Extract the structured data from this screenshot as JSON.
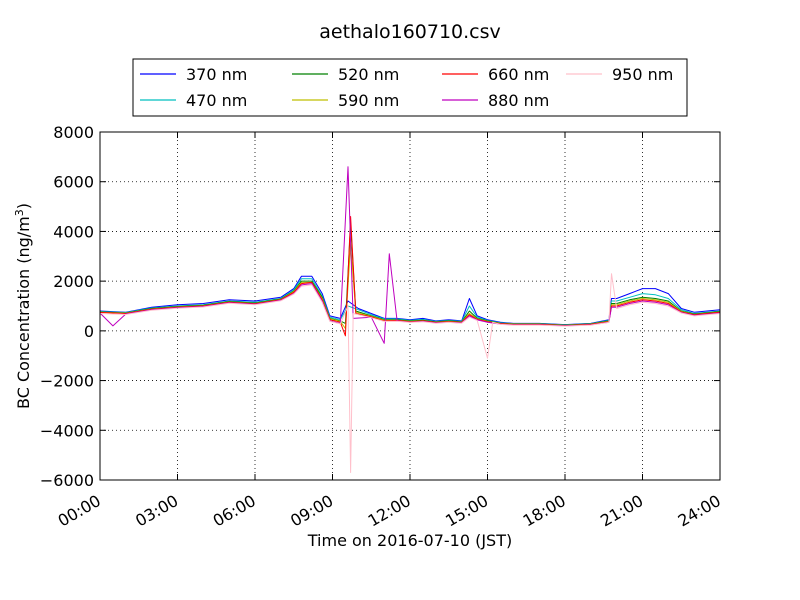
{
  "chart_data": {
    "type": "line",
    "title": "aethalo160710.csv",
    "xlabel": "Time on 2016-07-10 (JST)",
    "ylabel": "BC Concentration (ng/m",
    "ylabel_sup": "3",
    "ylabel_end": ")",
    "xlim": [
      0,
      24
    ],
    "ylim": [
      -6000,
      8000
    ],
    "x_ticks": [
      0,
      3,
      6,
      9,
      12,
      15,
      18,
      21,
      24
    ],
    "x_tick_labels": [
      "00:00",
      "03:00",
      "06:00",
      "09:00",
      "12:00",
      "15:00",
      "18:00",
      "21:00",
      "24:00"
    ],
    "y_ticks": [
      -6000,
      -4000,
      -2000,
      0,
      2000,
      4000,
      6000,
      8000
    ],
    "y_tick_labels": [
      "−6000",
      "−4000",
      "−2000",
      "0",
      "2000",
      "4000",
      "6000",
      "8000"
    ],
    "grid": true,
    "legend_position": "top-center",
    "series": [
      {
        "name": "370 nm",
        "color": "#0000ff",
        "points": [
          [
            0,
            800
          ],
          [
            1,
            750
          ],
          [
            2,
            950
          ],
          [
            3,
            1050
          ],
          [
            4,
            1100
          ],
          [
            5,
            1250
          ],
          [
            6,
            1200
          ],
          [
            7,
            1350
          ],
          [
            7.5,
            1700
          ],
          [
            7.8,
            2200
          ],
          [
            8.2,
            2200
          ],
          [
            8.6,
            1500
          ],
          [
            8.9,
            600
          ],
          [
            9.3,
            500
          ],
          [
            9.6,
            1200
          ],
          [
            10,
            900
          ],
          [
            10.5,
            700
          ],
          [
            11,
            500
          ],
          [
            11.5,
            500
          ],
          [
            12,
            450
          ],
          [
            12.5,
            500
          ],
          [
            13,
            400
          ],
          [
            13.5,
            450
          ],
          [
            14,
            400
          ],
          [
            14.3,
            1300
          ],
          [
            14.6,
            600
          ],
          [
            15,
            450
          ],
          [
            15.5,
            350
          ],
          [
            16,
            300
          ],
          [
            17,
            300
          ],
          [
            18,
            250
          ],
          [
            19,
            300
          ],
          [
            19.7,
            450
          ],
          [
            19.8,
            1300
          ],
          [
            20,
            1300
          ],
          [
            20.5,
            1500
          ],
          [
            21,
            1700
          ],
          [
            21.5,
            1700
          ],
          [
            22,
            1500
          ],
          [
            22.5,
            900
          ],
          [
            23,
            750
          ],
          [
            24,
            850
          ]
        ]
      },
      {
        "name": "470 nm",
        "color": "#00bfbf",
        "points": [
          [
            0,
            780
          ],
          [
            1,
            740
          ],
          [
            2,
            920
          ],
          [
            3,
            1000
          ],
          [
            4,
            1050
          ],
          [
            5,
            1200
          ],
          [
            6,
            1150
          ],
          [
            7,
            1300
          ],
          [
            7.5,
            1650
          ],
          [
            7.8,
            2100
          ],
          [
            8.2,
            2100
          ],
          [
            8.6,
            1400
          ],
          [
            8.9,
            550
          ],
          [
            9.3,
            450
          ],
          [
            9.6,
            1000
          ],
          [
            10,
            850
          ],
          [
            10.5,
            650
          ],
          [
            11,
            480
          ],
          [
            11.5,
            480
          ],
          [
            12,
            420
          ],
          [
            12.5,
            460
          ],
          [
            13,
            380
          ],
          [
            13.5,
            420
          ],
          [
            14,
            380
          ],
          [
            14.3,
            1000
          ],
          [
            14.6,
            550
          ],
          [
            15,
            420
          ],
          [
            15.5,
            330
          ],
          [
            16,
            290
          ],
          [
            17,
            290
          ],
          [
            18,
            240
          ],
          [
            19,
            290
          ],
          [
            19.7,
            420
          ],
          [
            19.8,
            1200
          ],
          [
            20,
            1200
          ],
          [
            20.5,
            1350
          ],
          [
            21,
            1500
          ],
          [
            21.5,
            1450
          ],
          [
            22,
            1300
          ],
          [
            22.5,
            850
          ],
          [
            23,
            700
          ],
          [
            24,
            800
          ]
        ]
      },
      {
        "name": "520 nm",
        "color": "#008000",
        "points": [
          [
            0,
            760
          ],
          [
            1,
            720
          ],
          [
            2,
            900
          ],
          [
            3,
            980
          ],
          [
            4,
            1030
          ],
          [
            5,
            1180
          ],
          [
            6,
            1120
          ],
          [
            7,
            1280
          ],
          [
            7.5,
            1600
          ],
          [
            7.8,
            2000
          ],
          [
            8.2,
            2000
          ],
          [
            8.6,
            1350
          ],
          [
            8.9,
            500
          ],
          [
            9.3,
            400
          ],
          [
            9.5,
            300
          ],
          [
            9.7,
            4300
          ],
          [
            9.9,
            800
          ],
          [
            10.5,
            600
          ],
          [
            11,
            450
          ],
          [
            11.5,
            450
          ],
          [
            12,
            400
          ],
          [
            12.5,
            430
          ],
          [
            13,
            360
          ],
          [
            13.5,
            400
          ],
          [
            14,
            360
          ],
          [
            14.3,
            800
          ],
          [
            14.6,
            500
          ],
          [
            15,
            400
          ],
          [
            15.5,
            310
          ],
          [
            16,
            280
          ],
          [
            17,
            280
          ],
          [
            18,
            230
          ],
          [
            19,
            280
          ],
          [
            19.7,
            400
          ],
          [
            19.8,
            1100
          ],
          [
            20,
            1100
          ],
          [
            20.5,
            1250
          ],
          [
            21,
            1350
          ],
          [
            21.5,
            1300
          ],
          [
            22,
            1200
          ],
          [
            22.5,
            800
          ],
          [
            23,
            680
          ],
          [
            24,
            780
          ]
        ]
      },
      {
        "name": "590 nm",
        "color": "#bfbf00",
        "points": [
          [
            0,
            750
          ],
          [
            1,
            710
          ],
          [
            2,
            880
          ],
          [
            3,
            960
          ],
          [
            4,
            1010
          ],
          [
            5,
            1160
          ],
          [
            6,
            1100
          ],
          [
            7,
            1260
          ],
          [
            7.5,
            1580
          ],
          [
            7.8,
            1950
          ],
          [
            8.2,
            1950
          ],
          [
            8.6,
            1300
          ],
          [
            8.9,
            480
          ],
          [
            9.3,
            380
          ],
          [
            9.5,
            100
          ],
          [
            9.7,
            3500
          ],
          [
            9.9,
            750
          ],
          [
            10.5,
            580
          ],
          [
            11,
            430
          ],
          [
            11.5,
            430
          ],
          [
            12,
            380
          ],
          [
            12.5,
            410
          ],
          [
            13,
            350
          ],
          [
            13.5,
            380
          ],
          [
            14,
            350
          ],
          [
            14.3,
            700
          ],
          [
            14.6,
            480
          ],
          [
            15,
            380
          ],
          [
            15.5,
            300
          ],
          [
            16,
            270
          ],
          [
            17,
            270
          ],
          [
            18,
            220
          ],
          [
            19,
            270
          ],
          [
            19.7,
            380
          ],
          [
            19.8,
            1050
          ],
          [
            20,
            1050
          ],
          [
            20.5,
            1200
          ],
          [
            21,
            1300
          ],
          [
            21.5,
            1250
          ],
          [
            22,
            1150
          ],
          [
            22.5,
            780
          ],
          [
            23,
            660
          ],
          [
            24,
            760
          ]
        ]
      },
      {
        "name": "660 nm",
        "color": "#ff0000",
        "points": [
          [
            0,
            740
          ],
          [
            1,
            700
          ],
          [
            2,
            870
          ],
          [
            3,
            950
          ],
          [
            4,
            1000
          ],
          [
            5,
            1150
          ],
          [
            6,
            1090
          ],
          [
            7,
            1250
          ],
          [
            7.5,
            1550
          ],
          [
            7.8,
            1900
          ],
          [
            8.2,
            1950
          ],
          [
            8.6,
            1250
          ],
          [
            8.9,
            450
          ],
          [
            9.3,
            350
          ],
          [
            9.5,
            -200
          ],
          [
            9.7,
            4600
          ],
          [
            9.9,
            700
          ],
          [
            10.5,
            560
          ],
          [
            11,
            400
          ],
          [
            11.5,
            420
          ],
          [
            12,
            370
          ],
          [
            12.5,
            400
          ],
          [
            13,
            340
          ],
          [
            13.5,
            370
          ],
          [
            14,
            340
          ],
          [
            14.3,
            650
          ],
          [
            14.6,
            460
          ],
          [
            15,
            370
          ],
          [
            15.5,
            290
          ],
          [
            16,
            260
          ],
          [
            17,
            260
          ],
          [
            18,
            210
          ],
          [
            19,
            260
          ],
          [
            19.7,
            370
          ],
          [
            19.8,
            1000
          ],
          [
            20,
            1000
          ],
          [
            20.5,
            1150
          ],
          [
            21,
            1250
          ],
          [
            21.5,
            1200
          ],
          [
            22,
            1100
          ],
          [
            22.5,
            760
          ],
          [
            23,
            650
          ],
          [
            24,
            750
          ]
        ]
      },
      {
        "name": "880 nm",
        "color": "#bf00bf",
        "points": [
          [
            0,
            720
          ],
          [
            0.5,
            200
          ],
          [
            1,
            680
          ],
          [
            2,
            850
          ],
          [
            3,
            930
          ],
          [
            4,
            980
          ],
          [
            5,
            1130
          ],
          [
            6,
            1070
          ],
          [
            7,
            1230
          ],
          [
            7.5,
            1500
          ],
          [
            7.8,
            1850
          ],
          [
            8.2,
            1900
          ],
          [
            8.6,
            1200
          ],
          [
            8.9,
            400
          ],
          [
            9.3,
            300
          ],
          [
            9.6,
            6600
          ],
          [
            9.8,
            500
          ],
          [
            10.5,
            550
          ],
          [
            11,
            -500
          ],
          [
            11.2,
            3100
          ],
          [
            11.5,
            400
          ],
          [
            12,
            350
          ],
          [
            12.5,
            380
          ],
          [
            13,
            320
          ],
          [
            13.5,
            350
          ],
          [
            14,
            320
          ],
          [
            14.3,
            600
          ],
          [
            14.6,
            440
          ],
          [
            15,
            350
          ],
          [
            15.5,
            270
          ],
          [
            16,
            240
          ],
          [
            17,
            240
          ],
          [
            18,
            200
          ],
          [
            19,
            240
          ],
          [
            19.7,
            350
          ],
          [
            19.8,
            950
          ],
          [
            20,
            950
          ],
          [
            20.5,
            1100
          ],
          [
            21,
            1200
          ],
          [
            21.5,
            1150
          ],
          [
            22,
            1050
          ],
          [
            22.5,
            740
          ],
          [
            23,
            620
          ],
          [
            24,
            720
          ]
        ]
      },
      {
        "name": "950 nm",
        "color": "#ffc0cb",
        "points": [
          [
            0,
            700
          ],
          [
            1,
            660
          ],
          [
            2,
            830
          ],
          [
            3,
            910
          ],
          [
            4,
            960
          ],
          [
            5,
            1110
          ],
          [
            6,
            1050
          ],
          [
            7,
            1210
          ],
          [
            7.5,
            1480
          ],
          [
            7.8,
            1800
          ],
          [
            8.2,
            1850
          ],
          [
            8.6,
            1150
          ],
          [
            8.9,
            380
          ],
          [
            9.3,
            280
          ],
          [
            9.6,
            1000
          ],
          [
            9.7,
            -5700
          ],
          [
            9.8,
            700
          ],
          [
            10.5,
            530
          ],
          [
            11,
            380
          ],
          [
            11.5,
            390
          ],
          [
            12,
            340
          ],
          [
            12.5,
            370
          ],
          [
            13,
            310
          ],
          [
            13.5,
            340
          ],
          [
            14,
            310
          ],
          [
            14.3,
            550
          ],
          [
            14.6,
            420
          ],
          [
            15,
            -1100
          ],
          [
            15.2,
            340
          ],
          [
            15.5,
            260
          ],
          [
            16,
            230
          ],
          [
            17,
            230
          ],
          [
            18,
            190
          ],
          [
            19,
            230
          ],
          [
            19.7,
            340
          ],
          [
            19.8,
            2300
          ],
          [
            20,
            900
          ],
          [
            20.5,
            1050
          ],
          [
            21,
            1150
          ],
          [
            21.5,
            1100
          ],
          [
            22,
            1000
          ],
          [
            22.5,
            720
          ],
          [
            23,
            600
          ],
          [
            24,
            700
          ]
        ]
      }
    ]
  }
}
